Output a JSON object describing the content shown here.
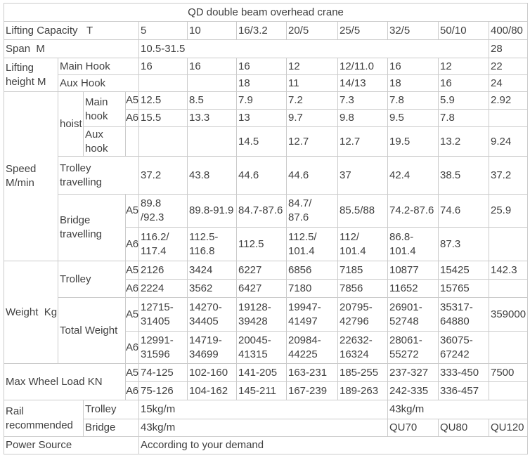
{
  "chart_data": {
    "type": "table",
    "title": "QD double beam overhead crane",
    "rows": [
      {
        "cells": [
          {
            "t": "QD double beam overhead crane",
            "cs": 12,
            "name": "table-title"
          }
        ]
      },
      {
        "cells": [
          {
            "t": "Lifting Capacity   T",
            "cs": 4
          },
          {
            "t": "5"
          },
          {
            "t": "10"
          },
          {
            "t": "16/3.2"
          },
          {
            "t": "20/5"
          },
          {
            "t": "25/5"
          },
          {
            "t": "32/5"
          },
          {
            "t": "50/10"
          },
          {
            "t": "400/80"
          }
        ]
      },
      {
        "cells": [
          {
            "t": "Span  M",
            "cs": 4
          },
          {
            "t": "10.5-31.5",
            "cs": 7
          },
          {
            "t": "28"
          }
        ]
      },
      {
        "cells": [
          {
            "t": "Lifting\nheight M",
            "rs": 2
          },
          {
            "t": "Main Hook",
            "cs": 3
          },
          {
            "t": "16"
          },
          {
            "t": "16"
          },
          {
            "t": "16"
          },
          {
            "t": "12"
          },
          {
            "t": "12/11.0"
          },
          {
            "t": "16"
          },
          {
            "t": "12"
          },
          {
            "t": "22"
          }
        ]
      },
      {
        "cells": [
          {
            "t": "Aux Hook",
            "cs": 3
          },
          {
            "t": ""
          },
          {
            "t": ""
          },
          {
            "t": "18"
          },
          {
            "t": "11"
          },
          {
            "t": "14/13"
          },
          {
            "t": "18"
          },
          {
            "t": "16"
          },
          {
            "t": "24"
          }
        ]
      },
      {
        "cells": [
          {
            "t": "Speed\nM/min",
            "rs": 6
          },
          {
            "t": "hoist",
            "rs": 3
          },
          {
            "t": "Main\nhook",
            "rs": 2
          },
          {
            "t": "A5"
          },
          {
            "t": "12.5"
          },
          {
            "t": "8.5"
          },
          {
            "t": "7.9"
          },
          {
            "t": "7.2"
          },
          {
            "t": "7.3"
          },
          {
            "t": "7.8"
          },
          {
            "t": "5.9"
          },
          {
            "t": "2.92"
          }
        ]
      },
      {
        "cells": [
          {
            "t": "A6"
          },
          {
            "t": "15.5"
          },
          {
            "t": "13.3"
          },
          {
            "t": "13"
          },
          {
            "t": "9.7"
          },
          {
            "t": "9.8"
          },
          {
            "t": "9.5"
          },
          {
            "t": "7.8"
          },
          {
            "t": ""
          }
        ]
      },
      {
        "cells": [
          {
            "t": "Aux\nhook"
          },
          {
            "t": ""
          },
          {
            "t": ""
          },
          {
            "t": ""
          },
          {
            "t": "14.5"
          },
          {
            "t": "12.7"
          },
          {
            "t": "12.7"
          },
          {
            "t": "19.5"
          },
          {
            "t": "13.2"
          },
          {
            "t": "9.24"
          }
        ]
      },
      {
        "cells": [
          {
            "t": "Trolley\ntravelling",
            "cs": 3
          },
          {
            "t": "37.2"
          },
          {
            "t": "43.8"
          },
          {
            "t": "44.6"
          },
          {
            "t": "44.6"
          },
          {
            "t": "37"
          },
          {
            "t": "42.4"
          },
          {
            "t": "38.5"
          },
          {
            "t": "37.2"
          }
        ]
      },
      {
        "cells": [
          {
            "t": "Bridge\ntravelling",
            "cs": 2,
            "rs": 2
          },
          {
            "t": "A5"
          },
          {
            "t": "89.8\n/92.3"
          },
          {
            "t": "89.8-91.9"
          },
          {
            "t": "84.7-87.6"
          },
          {
            "t": "84.7/\n87.6"
          },
          {
            "t": "85.5/88"
          },
          {
            "t": "74.2-87.6"
          },
          {
            "t": "74.6"
          },
          {
            "t": "25.9"
          }
        ]
      },
      {
        "cells": [
          {
            "t": "A6"
          },
          {
            "t": "116.2/\n117.4"
          },
          {
            "t": "112.5-\n116.8"
          },
          {
            "t": "112.5"
          },
          {
            "t": "112.5/\n101.4"
          },
          {
            "t": "112/\n101.4"
          },
          {
            "t": "86.8-\n101.4"
          },
          {
            "t": "87.3"
          },
          {
            "t": ""
          }
        ]
      },
      {
        "cells": [
          {
            "t": "Weight  Kg",
            "rs": 4
          },
          {
            "t": "Trolley",
            "cs": 2,
            "rs": 2
          },
          {
            "t": "A5"
          },
          {
            "t": "2126"
          },
          {
            "t": "3424"
          },
          {
            "t": "6227"
          },
          {
            "t": "6856"
          },
          {
            "t": "7185"
          },
          {
            "t": "10877"
          },
          {
            "t": "15425"
          },
          {
            "t": "142.3"
          }
        ]
      },
      {
        "cells": [
          {
            "t": "A6"
          },
          {
            "t": "2224"
          },
          {
            "t": "3562"
          },
          {
            "t": "6427"
          },
          {
            "t": "7180"
          },
          {
            "t": "7856"
          },
          {
            "t": "11652"
          },
          {
            "t": "15765"
          },
          {
            "t": ""
          }
        ]
      },
      {
        "cells": [
          {
            "t": "Total Weight",
            "cs": 2,
            "rs": 2
          },
          {
            "t": "A5"
          },
          {
            "t": "12715-\n31405"
          },
          {
            "t": "14270-\n34405"
          },
          {
            "t": "19128-\n39428"
          },
          {
            "t": "19947-\n41497"
          },
          {
            "t": "20795-\n42796"
          },
          {
            "t": "26901-\n52748"
          },
          {
            "t": "35317-\n64880"
          },
          {
            "t": "359000"
          }
        ]
      },
      {
        "cells": [
          {
            "t": "A6"
          },
          {
            "t": "12991-\n31596"
          },
          {
            "t": "14719-\n34699"
          },
          {
            "t": "20045-\n41315"
          },
          {
            "t": "20984-\n44225"
          },
          {
            "t": "22632-\n16324"
          },
          {
            "t": "28061-\n55272"
          },
          {
            "t": "36075-\n67242"
          },
          {
            "t": ""
          }
        ]
      },
      {
        "cells": [
          {
            "t": "Max Wheel Load KN",
            "cs": 3,
            "rs": 2
          },
          {
            "t": "A5"
          },
          {
            "t": "74-125"
          },
          {
            "t": "102-160"
          },
          {
            "t": "141-205"
          },
          {
            "t": "163-231"
          },
          {
            "t": "185-255"
          },
          {
            "t": "237-327"
          },
          {
            "t": "333-450"
          },
          {
            "t": "7500"
          }
        ]
      },
      {
        "cells": [
          {
            "t": "A6"
          },
          {
            "t": "75-126"
          },
          {
            "t": "104-162"
          },
          {
            "t": "145-211"
          },
          {
            "t": "167-239"
          },
          {
            "t": "189-263"
          },
          {
            "t": "242-335"
          },
          {
            "t": "336-457"
          },
          {
            "t": ""
          }
        ]
      },
      {
        "cells": [
          {
            "t": "Rail\nrecommended",
            "cs": 2,
            "rs": 2
          },
          {
            "t": "Trolley",
            "cs": 2
          },
          {
            "t": "15kg/m",
            "cs": 5
          },
          {
            "t": "43kg/m",
            "cs": 3
          }
        ]
      },
      {
        "cells": [
          {
            "t": "Bridge",
            "cs": 2
          },
          {
            "t": "43kg/m",
            "cs": 5
          },
          {
            "t": "QU70"
          },
          {
            "t": "QU80"
          },
          {
            "t": "QU120"
          }
        ]
      },
      {
        "cells": [
          {
            "t": "Power Source",
            "cs": 4
          },
          {
            "t": "According to your demand",
            "cs": 8
          }
        ]
      }
    ]
  },
  "colors": {
    "border": "#cbcbcb",
    "text": "#404040",
    "background": "#ffffff"
  }
}
